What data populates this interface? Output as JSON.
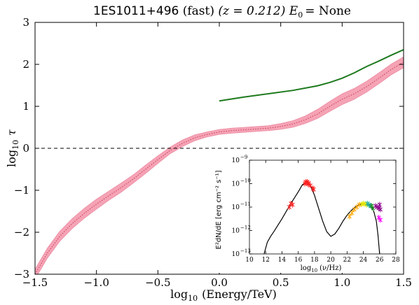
{
  "chart_data": [
    {
      "type": "line",
      "title_parts": {
        "source": "1ES1011+496",
        "model": "(fast)",
        "redshift": "(z = 0.212)",
        "cutoff": "E",
        "cutoff_sub": "0",
        "cutoff_value": "= None"
      },
      "xlabel": "log",
      "xlabel_sub": "10",
      "xlabel_rest": "(Energy/TeV)",
      "ylabel": "log",
      "ylabel_sub": "10",
      "ylabel_rest": "τ",
      "xlim": [
        -1.5,
        1.5
      ],
      "ylim": [
        -3,
        3
      ],
      "xticks": [
        -1.5,
        -1.0,
        -0.5,
        0.0,
        0.5,
        1.0,
        1.5
      ],
      "xtick_labels": [
        "−1.5",
        "−1.0",
        "−0.5",
        "0.0",
        "0.5",
        "1.0",
        "1.5"
      ],
      "yticks": [
        -3,
        -2,
        -1,
        0,
        1,
        2,
        3
      ],
      "ytick_labels": [
        "−3",
        "−2",
        "−1",
        "0",
        "1",
        "2",
        "3"
      ],
      "reference_line": {
        "y": 0,
        "style": "dashed"
      },
      "series": [
        {
          "style": "dotted",
          "color": "#c43a5a",
          "x": [
            -1.5,
            -1.4,
            -1.3,
            -1.2,
            -1.1,
            -1.0,
            -0.9,
            -0.8,
            -0.7,
            -0.6,
            -0.5,
            -0.4,
            -0.3,
            -0.2,
            -0.1,
            0.0,
            0.1,
            0.2,
            0.3,
            0.4,
            0.5,
            0.6,
            0.7,
            0.8,
            0.9,
            1.0,
            1.1,
            1.2,
            1.3,
            1.4,
            1.5
          ],
          "y": [
            -3.0,
            -2.5,
            -2.1,
            -1.8,
            -1.55,
            -1.33,
            -1.13,
            -0.94,
            -0.73,
            -0.5,
            -0.27,
            -0.05,
            0.12,
            0.25,
            0.33,
            0.39,
            0.42,
            0.44,
            0.46,
            0.48,
            0.52,
            0.58,
            0.68,
            0.82,
            1.0,
            1.17,
            1.3,
            1.47,
            1.67,
            1.88,
            2.05
          ]
        },
        {
          "style": "band",
          "color": "#f5a3b5",
          "x": [
            -1.5,
            -1.4,
            -1.3,
            -1.2,
            -1.1,
            -1.0,
            -0.9,
            -0.8,
            -0.7,
            -0.6,
            -0.5,
            -0.4,
            -0.3,
            -0.2,
            -0.1,
            0.0,
            0.1,
            0.2,
            0.3,
            0.4,
            0.5,
            0.6,
            0.7,
            0.8,
            0.9,
            1.0,
            1.1,
            1.2,
            1.3,
            1.4,
            1.5
          ],
          "half_width": [
            0.12,
            0.12,
            0.12,
            0.12,
            0.12,
            0.12,
            0.11,
            0.11,
            0.1,
            0.1,
            0.09,
            0.08,
            0.08,
            0.07,
            0.06,
            0.06,
            0.06,
            0.06,
            0.06,
            0.06,
            0.07,
            0.08,
            0.09,
            0.11,
            0.12,
            0.13,
            0.13,
            0.13,
            0.13,
            0.13,
            0.13
          ]
        },
        {
          "style": "solid",
          "color": "#1e7a1e",
          "x": [
            0.0,
            0.2,
            0.4,
            0.6,
            0.8,
            0.9,
            1.0,
            1.1,
            1.2,
            1.3,
            1.4,
            1.5
          ],
          "y": [
            1.13,
            1.22,
            1.3,
            1.38,
            1.49,
            1.57,
            1.67,
            1.8,
            1.95,
            2.08,
            2.22,
            2.35
          ]
        }
      ]
    },
    {
      "type": "scatter",
      "inset": true,
      "xlabel": "log",
      "xlabel_sub": "10",
      "xlabel_rest": "(ν/Hz)",
      "ylabel": "E²dN/dE [erg cm⁻² s⁻¹]",
      "xlim": [
        10,
        28
      ],
      "ylim_log10": [
        -13,
        -9
      ],
      "xticks": [
        10,
        12,
        14,
        16,
        18,
        20,
        22,
        24,
        26,
        28
      ],
      "xtick_labels": [
        "10",
        "12",
        "14",
        "16",
        "18",
        "20",
        "22",
        "24",
        "26",
        "28"
      ],
      "ytick_exponents": [
        -13,
        -12,
        -11,
        -10,
        -9
      ],
      "ytick_base": "10",
      "model_curve": {
        "color": "#000000",
        "x": [
          11.8,
          12.2,
          12.6,
          13.0,
          14.0,
          15.0,
          16.0,
          16.5,
          17.0,
          17.3,
          17.6,
          18.0,
          18.5,
          19.0,
          19.5,
          20.0,
          20.5,
          21.0,
          21.5,
          22.0,
          22.5,
          23.0,
          23.5,
          24.0,
          24.5,
          25.0,
          25.3,
          25.6,
          25.8,
          26.0
        ],
        "log_y": [
          -13.0,
          -12.5,
          -12.25,
          -12.05,
          -11.5,
          -10.9,
          -10.35,
          -10.05,
          -9.93,
          -9.97,
          -10.15,
          -10.5,
          -11.05,
          -11.6,
          -12.05,
          -12.25,
          -12.15,
          -11.9,
          -11.6,
          -11.35,
          -11.15,
          -11.0,
          -10.9,
          -10.85,
          -10.88,
          -11.0,
          -11.2,
          -11.6,
          -12.2,
          -13.0
        ]
      },
      "points": [
        {
          "color": "#ff2020",
          "x": [
            14.9,
            15.1,
            15.3,
            16.8,
            16.9,
            17.0,
            17.1,
            17.2,
            17.3,
            17.5,
            17.8,
            17.9
          ],
          "log_y": [
            -11.0,
            -10.85,
            -10.9,
            -10.0,
            -9.93,
            -9.97,
            -9.92,
            -10.02,
            -9.98,
            -10.08,
            -10.2,
            -10.25
          ]
        },
        {
          "color": "#ffa500",
          "x": [
            22.3,
            22.6,
            22.9,
            23.2,
            23.5
          ],
          "log_y": [
            -11.4,
            -11.25,
            -11.1,
            -11.0,
            -10.9
          ]
        },
        {
          "color": "#e6e600",
          "x": [
            23.8,
            24.0,
            24.2,
            24.4
          ],
          "log_y": [
            -10.88,
            -10.85,
            -10.87,
            -10.9
          ]
        },
        {
          "color": "#20b2aa",
          "x": [
            24.5,
            24.7,
            24.9
          ],
          "log_y": [
            -10.85,
            -10.9,
            -10.95
          ]
        },
        {
          "color": "#228b22",
          "x": [
            25.0,
            25.2
          ],
          "log_y": [
            -10.95,
            -11.05
          ]
        },
        {
          "color": "#8b008b",
          "x": [
            25.5,
            25.7,
            25.9,
            26.0,
            26.1
          ],
          "log_y": [
            -10.95,
            -11.0,
            -11.05,
            -10.9,
            -11.1
          ]
        },
        {
          "color": "#ff00ff",
          "x": [
            25.9,
            26.1
          ],
          "log_y": [
            -11.45,
            -11.55
          ]
        }
      ]
    }
  ]
}
